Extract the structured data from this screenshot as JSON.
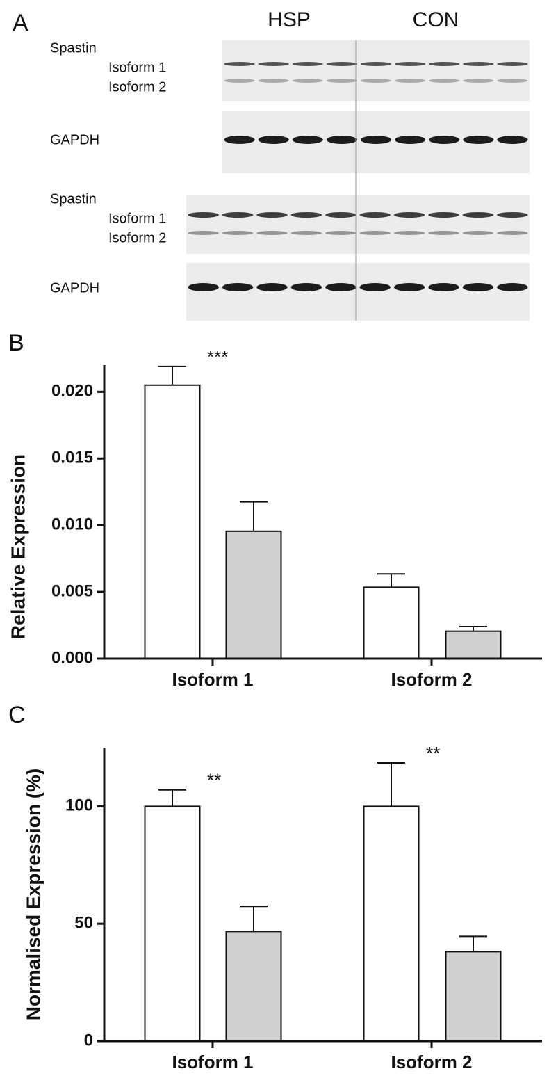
{
  "panel_a": {
    "label": "A",
    "groups": [
      "HSP",
      "CON"
    ],
    "labels": [
      "Spastin",
      "Isoform 1",
      "Isoform 2",
      "GAPDH",
      "Spastin",
      "Isoform 1",
      "Isoform 2",
      "GAPDH"
    ]
  },
  "chart_data": [
    {
      "type": "bar",
      "panel": "B",
      "ylabel": "Relative Expression",
      "categories": [
        "Isoform 1",
        "Isoform 2"
      ],
      "series": [
        {
          "color": "#ffffff",
          "values": [
            0.0205,
            0.00535
          ],
          "errors": [
            0.0014,
            0.001
          ]
        },
        {
          "color": "#d0d0d0",
          "values": [
            0.00955,
            0.00205
          ],
          "errors": [
            0.0022,
            0.00035
          ]
        }
      ],
      "annotations": [
        "***",
        null
      ],
      "ylim": [
        0,
        0.022
      ],
      "yticks": [
        {
          "value": 0,
          "label": "0.000"
        },
        {
          "value": 0.005,
          "label": "0.005"
        },
        {
          "value": 0.01,
          "label": "0.010"
        },
        {
          "value": 0.015,
          "label": "0.015"
        },
        {
          "value": 0.02,
          "label": "0.020"
        }
      ]
    },
    {
      "type": "bar",
      "panel": "C",
      "ylabel": "Normalised Expression (%)",
      "categories": [
        "Isoform 1",
        "Isoform 2"
      ],
      "series": [
        {
          "color": "#ffffff",
          "values": [
            100,
            100
          ],
          "errors": [
            7,
            18.5
          ]
        },
        {
          "color": "#d0d0d0",
          "values": [
            46.7,
            38.1
          ],
          "errors": [
            10.7,
            6.5
          ]
        }
      ],
      "annotations": [
        "**",
        "**"
      ],
      "ylim": [
        0,
        125
      ],
      "yticks": [
        0,
        50,
        100
      ]
    }
  ]
}
